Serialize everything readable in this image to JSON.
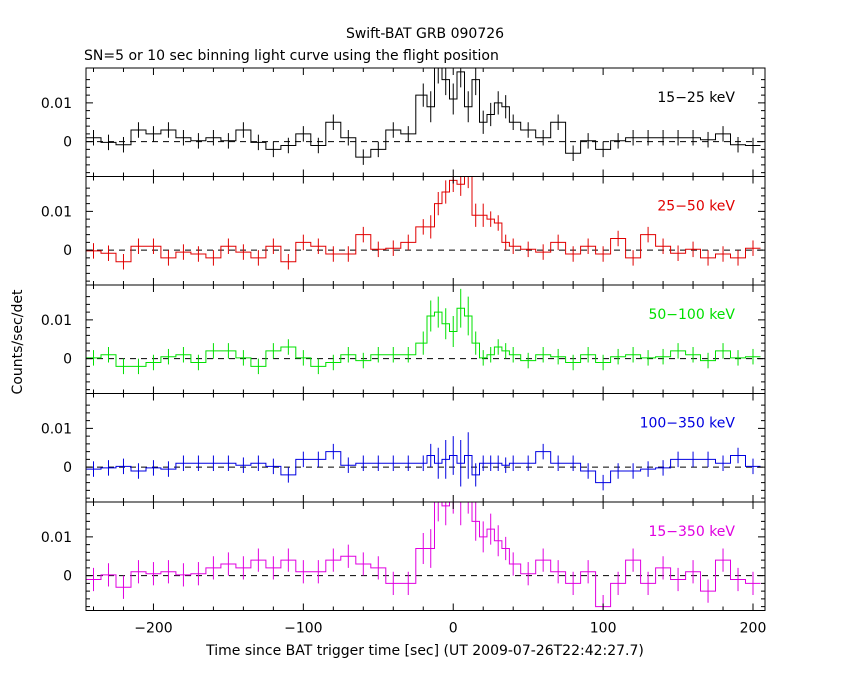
{
  "title": "Swift-BAT GRB 090726",
  "subtitle": "SN=5 or 10 sec binning light curve using the flight position",
  "ylabel": "Counts/sec/det",
  "xlabel": "Time since BAT trigger time [sec] (UT 2009-07-26T22:42:27.7)",
  "colors": {
    "axes": "#000000",
    "panel_15_25": "#000000",
    "panel_25_50": "#e00000",
    "panel_50_100": "#00e000",
    "panel_100_350": "#0000e0",
    "panel_15_350": "#e000e0"
  },
  "chart_data": {
    "type": "line",
    "xlim": [
      -245,
      208
    ],
    "ylim": [
      -0.009,
      0.019
    ],
    "x_ticks": [
      -200,
      -100,
      0,
      100,
      200
    ],
    "x_tick_labels": [
      "−200",
      "−100",
      "0",
      "100",
      "200"
    ],
    "y_ticks": [
      0,
      0.01
    ],
    "y_tick_labels": [
      "0",
      "0.01"
    ],
    "zero_line": "dashed",
    "panels": [
      {
        "name": "15−25 keV",
        "color": "#000000",
        "x": [
          -240,
          -230,
          -220,
          -210,
          -200,
          -190,
          -180,
          -170,
          -160,
          -150,
          -140,
          -130,
          -120,
          -110,
          -100,
          -90,
          -80,
          -70,
          -60,
          -50,
          -40,
          -30,
          -20,
          -15,
          -10,
          -5,
          0,
          5,
          10,
          15,
          20,
          25,
          30,
          35,
          40,
          50,
          60,
          70,
          80,
          90,
          100,
          110,
          120,
          130,
          140,
          150,
          160,
          170,
          180,
          190,
          200
        ],
        "values": [
          0.001,
          -0.0002,
          -0.0008,
          0.003,
          0.002,
          0.003,
          0.001,
          0.0002,
          0.001,
          0.0002,
          0.003,
          -0.0002,
          -0.002,
          -0.001,
          0.002,
          -0.001,
          0.005,
          0.001,
          -0.004,
          -0.002,
          0.003,
          0.002,
          0.012,
          0.009,
          0.019,
          0.016,
          0.011,
          0.018,
          0.009,
          0.016,
          0.005,
          0.007,
          0.01,
          0.009,
          0.005,
          0.003,
          0.001,
          0.005,
          -0.003,
          0.0002,
          -0.002,
          0.0002,
          0.001,
          0.001,
          0.001,
          0.001,
          0.001,
          0.0005,
          0.002,
          -0.0008,
          -0.001
        ],
        "errors": [
          0.002,
          0.002,
          0.002,
          0.002,
          0.002,
          0.002,
          0.002,
          0.002,
          0.002,
          0.002,
          0.002,
          0.002,
          0.002,
          0.002,
          0.002,
          0.002,
          0.002,
          0.002,
          0.002,
          0.002,
          0.002,
          0.002,
          0.003,
          0.004,
          0.004,
          0.004,
          0.004,
          0.004,
          0.004,
          0.004,
          0.003,
          0.003,
          0.003,
          0.003,
          0.002,
          0.002,
          0.002,
          0.002,
          0.002,
          0.002,
          0.002,
          0.002,
          0.002,
          0.002,
          0.002,
          0.002,
          0.002,
          0.002,
          0.002,
          0.002,
          0.002
        ]
      },
      {
        "name": "25−50 keV",
        "color": "#e00000",
        "x": [
          -240,
          -230,
          -220,
          -210,
          -200,
          -190,
          -180,
          -170,
          -160,
          -150,
          -140,
          -130,
          -120,
          -110,
          -100,
          -90,
          -80,
          -70,
          -60,
          -50,
          -40,
          -30,
          -20,
          -15,
          -10,
          -5,
          0,
          5,
          10,
          15,
          20,
          25,
          30,
          35,
          40,
          50,
          60,
          70,
          80,
          90,
          100,
          110,
          120,
          130,
          140,
          150,
          160,
          170,
          180,
          190,
          200
        ],
        "values": [
          -0.0002,
          -0.0008,
          -0.003,
          0.001,
          0.001,
          -0.002,
          -0.0005,
          -0.001,
          -0.002,
          0.001,
          -0.0005,
          -0.002,
          0.001,
          -0.003,
          0.002,
          0.001,
          -0.001,
          -0.001,
          0.004,
          0.0002,
          0.0005,
          0.002,
          0.006,
          0.006,
          0.012,
          0.015,
          0.018,
          0.017,
          0.019,
          0.009,
          0.009,
          0.008,
          0.007,
          0.002,
          0.001,
          0.0002,
          -0.0005,
          0.002,
          -0.001,
          0.001,
          -0.001,
          0.003,
          -0.002,
          0.004,
          0.001,
          -0.0008,
          0.0002,
          -0.002,
          -0.001,
          -0.002,
          0.0005
        ],
        "errors": [
          0.002,
          0.002,
          0.002,
          0.002,
          0.002,
          0.002,
          0.002,
          0.002,
          0.002,
          0.002,
          0.002,
          0.002,
          0.002,
          0.002,
          0.002,
          0.002,
          0.002,
          0.002,
          0.002,
          0.002,
          0.002,
          0.002,
          0.002,
          0.003,
          0.003,
          0.003,
          0.003,
          0.003,
          0.003,
          0.003,
          0.003,
          0.002,
          0.002,
          0.002,
          0.002,
          0.002,
          0.002,
          0.002,
          0.002,
          0.002,
          0.002,
          0.002,
          0.002,
          0.002,
          0.002,
          0.002,
          0.002,
          0.002,
          0.002,
          0.002,
          0.002
        ]
      },
      {
        "name": "50−100 keV",
        "color": "#00e000",
        "x": [
          -240,
          -230,
          -220,
          -210,
          -200,
          -190,
          -180,
          -170,
          -160,
          -150,
          -140,
          -130,
          -120,
          -110,
          -100,
          -90,
          -80,
          -70,
          -60,
          -50,
          -40,
          -30,
          -20,
          -15,
          -10,
          -5,
          0,
          5,
          10,
          15,
          20,
          25,
          30,
          35,
          40,
          50,
          60,
          70,
          80,
          90,
          100,
          110,
          120,
          130,
          140,
          150,
          160,
          170,
          180,
          190,
          200
        ],
        "values": [
          0.0002,
          0.001,
          -0.002,
          -0.002,
          -0.001,
          0.0005,
          0.001,
          -0.001,
          0.002,
          0.002,
          0.0002,
          -0.002,
          0.002,
          0.003,
          0.0002,
          -0.002,
          -0.001,
          0.001,
          -0.0005,
          0.001,
          0.001,
          0.001,
          0.004,
          0.011,
          0.012,
          0.009,
          0.007,
          0.013,
          0.011,
          0.004,
          0.0002,
          0.001,
          0.003,
          0.002,
          0.001,
          -0.0005,
          0.001,
          0.0005,
          -0.001,
          0.001,
          -0.001,
          0.0005,
          0.001,
          0.0002,
          0.0005,
          0.002,
          0.001,
          -0.0005,
          0.002,
          0.0002,
          0.0005
        ],
        "errors": [
          0.002,
          0.002,
          0.002,
          0.002,
          0.002,
          0.002,
          0.002,
          0.002,
          0.002,
          0.002,
          0.002,
          0.002,
          0.002,
          0.002,
          0.002,
          0.002,
          0.002,
          0.002,
          0.002,
          0.002,
          0.002,
          0.002,
          0.003,
          0.004,
          0.004,
          0.004,
          0.004,
          0.005,
          0.005,
          0.003,
          0.002,
          0.002,
          0.002,
          0.002,
          0.002,
          0.002,
          0.002,
          0.002,
          0.002,
          0.002,
          0.002,
          0.002,
          0.002,
          0.002,
          0.002,
          0.002,
          0.002,
          0.002,
          0.002,
          0.002,
          0.002
        ]
      },
      {
        "name": "100−350 keV",
        "color": "#0000e0",
        "x": [
          -240,
          -230,
          -220,
          -210,
          -200,
          -190,
          -180,
          -170,
          -160,
          -150,
          -140,
          -130,
          -120,
          -110,
          -100,
          -90,
          -80,
          -70,
          -60,
          -50,
          -40,
          -30,
          -20,
          -15,
          -10,
          -5,
          0,
          5,
          10,
          15,
          20,
          25,
          30,
          35,
          40,
          50,
          60,
          70,
          80,
          90,
          100,
          110,
          120,
          130,
          140,
          150,
          160,
          170,
          180,
          190,
          200
        ],
        "values": [
          -0.0005,
          -0.0002,
          0.0002,
          -0.001,
          -0.0002,
          -0.0005,
          0.001,
          0.001,
          0.001,
          0.001,
          0.0005,
          0.001,
          0.0002,
          -0.002,
          0.002,
          0.002,
          0.004,
          0.0005,
          0.001,
          0.001,
          0.001,
          0.001,
          0.001,
          0.003,
          0.001,
          0.002,
          0.003,
          0.001,
          0.003,
          -0.002,
          0.001,
          0.001,
          0.001,
          0.0005,
          0.001,
          0.001,
          0.004,
          0.001,
          0.001,
          -0.001,
          -0.004,
          -0.001,
          -0.001,
          -0.0005,
          -0.0002,
          0.002,
          0.002,
          0.002,
          0.001,
          0.003,
          0.0002
        ],
        "errors": [
          0.002,
          0.002,
          0.002,
          0.002,
          0.002,
          0.002,
          0.002,
          0.002,
          0.002,
          0.002,
          0.002,
          0.002,
          0.002,
          0.002,
          0.002,
          0.002,
          0.002,
          0.002,
          0.002,
          0.002,
          0.002,
          0.002,
          0.002,
          0.003,
          0.004,
          0.005,
          0.005,
          0.006,
          0.006,
          0.003,
          0.002,
          0.002,
          0.002,
          0.002,
          0.002,
          0.002,
          0.002,
          0.002,
          0.002,
          0.002,
          0.002,
          0.002,
          0.002,
          0.002,
          0.002,
          0.002,
          0.002,
          0.002,
          0.002,
          0.002,
          0.002
        ]
      },
      {
        "name": "15−350 keV",
        "color": "#e000e0",
        "x": [
          -240,
          -230,
          -220,
          -210,
          -200,
          -190,
          -180,
          -170,
          -160,
          -150,
          -140,
          -130,
          -120,
          -110,
          -100,
          -90,
          -80,
          -70,
          -60,
          -50,
          -40,
          -30,
          -20,
          -15,
          -10,
          -5,
          0,
          5,
          10,
          15,
          20,
          25,
          30,
          35,
          40,
          50,
          60,
          70,
          80,
          90,
          100,
          110,
          120,
          130,
          140,
          150,
          160,
          170,
          180,
          190,
          200
        ],
        "values": [
          -0.001,
          0.0002,
          -0.003,
          0.001,
          0.0005,
          0.001,
          0.0002,
          0.0005,
          0.002,
          0.003,
          0.002,
          0.004,
          0.002,
          0.004,
          0.001,
          0.001,
          0.004,
          0.005,
          0.003,
          0.002,
          -0.002,
          -0.002,
          0.007,
          0.007,
          0.019,
          0.018,
          0.021,
          0.019,
          0.022,
          0.014,
          0.01,
          0.012,
          0.009,
          0.007,
          0.003,
          0.0005,
          0.004,
          0.001,
          -0.002,
          0.001,
          -0.008,
          -0.002,
          0.004,
          -0.002,
          0.002,
          -0.001,
          0.001,
          -0.004,
          0.004,
          -0.001,
          -0.002
        ],
        "errors": [
          0.003,
          0.003,
          0.003,
          0.003,
          0.003,
          0.003,
          0.003,
          0.003,
          0.003,
          0.003,
          0.003,
          0.003,
          0.003,
          0.003,
          0.003,
          0.003,
          0.003,
          0.003,
          0.003,
          0.003,
          0.003,
          0.003,
          0.004,
          0.005,
          0.005,
          0.005,
          0.005,
          0.006,
          0.006,
          0.005,
          0.004,
          0.004,
          0.004,
          0.003,
          0.003,
          0.003,
          0.003,
          0.003,
          0.003,
          0.003,
          0.003,
          0.003,
          0.003,
          0.003,
          0.003,
          0.003,
          0.003,
          0.003,
          0.003,
          0.003,
          0.003
        ]
      }
    ]
  }
}
